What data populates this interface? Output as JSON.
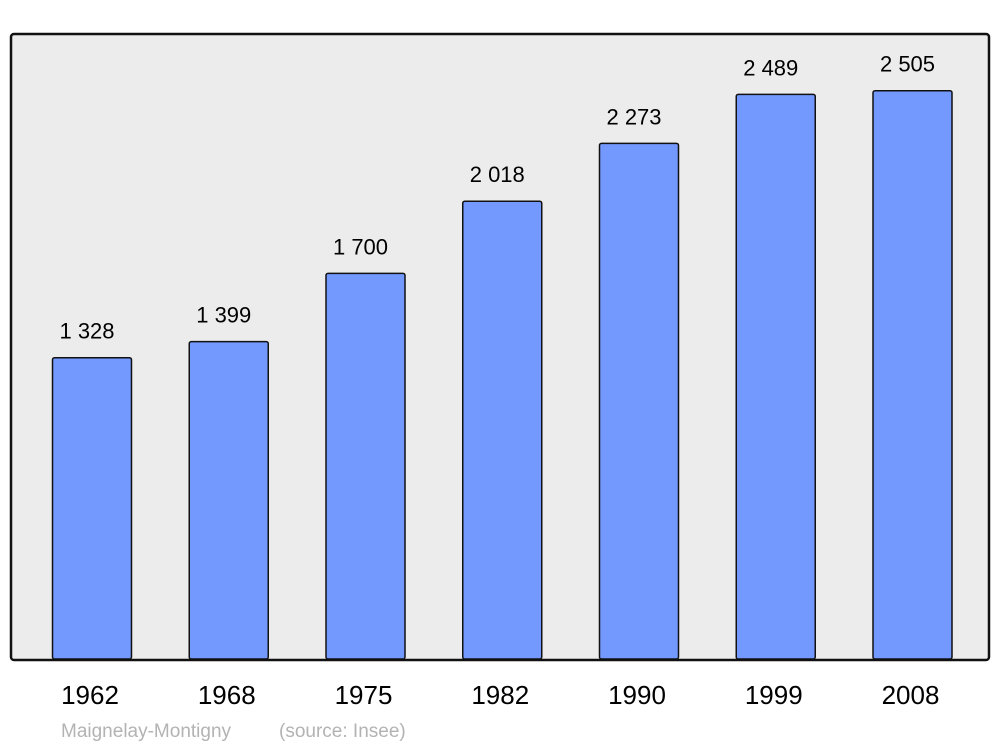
{
  "chart_data": {
    "type": "bar",
    "categories": [
      "1962",
      "1968",
      "1975",
      "1982",
      "1990",
      "1999",
      "2008"
    ],
    "values": [
      1328,
      1399,
      1700,
      2018,
      2273,
      2489,
      2505
    ],
    "value_labels": [
      "1 328",
      "1 399",
      "1 700",
      "2 018",
      "2 273",
      "2 489",
      "2 505"
    ],
    "title": "",
    "xlabel": "",
    "ylabel": "",
    "ylim": [
      0,
      2755
    ],
    "grid": false,
    "legend": "none",
    "bar_color": "#7399ff",
    "background_color": "#ececec",
    "footer": {
      "place": "Maignelay-Montigny",
      "source": "(source: Insee)"
    }
  }
}
